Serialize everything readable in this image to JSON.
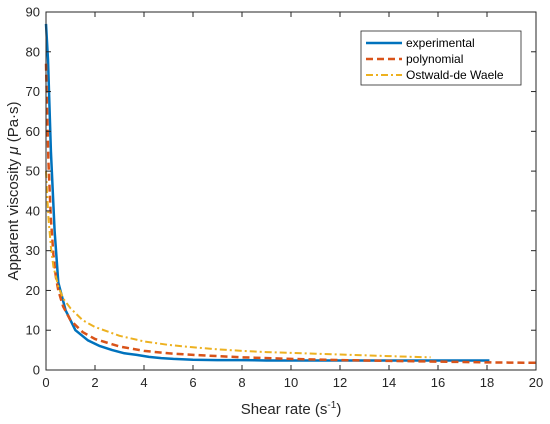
{
  "chart_data": {
    "type": "line",
    "title": "",
    "xlabel": {
      "prefix": "Shear rate (s",
      "sup": "-1",
      "suffix": ")"
    },
    "ylabel": {
      "prefix": "Apparent viscosity ",
      "symbol": "μ",
      "suffix": " (Pa·s)"
    },
    "xlim": [
      0,
      20
    ],
    "ylim": [
      0,
      90
    ],
    "xticks": [
      "0",
      "2",
      "4",
      "6",
      "8",
      "10",
      "12",
      "14",
      "16",
      "18",
      "20"
    ],
    "yticks": [
      "0",
      "10",
      "20",
      "30",
      "40",
      "50",
      "60",
      "70",
      "80",
      "90"
    ],
    "grid": false,
    "legend_position": "top-right",
    "series": [
      {
        "name": "experimental",
        "color": "#0072BD",
        "dash": "solid",
        "x": [
          0.0,
          0.08,
          0.2,
          0.35,
          0.5,
          0.8,
          1.2,
          1.7,
          2.2,
          2.7,
          3.2,
          3.7,
          4.2,
          4.7,
          5.2,
          6.0,
          7.0,
          8.0,
          9.0,
          10.0,
          11.0,
          12.0,
          13.0,
          14.0,
          15.0,
          16.0,
          17.0,
          18.1
        ],
        "y": [
          87.0,
          78.0,
          55.0,
          35.0,
          22.0,
          15.0,
          10.0,
          7.5,
          6.0,
          5.0,
          4.2,
          3.8,
          3.3,
          3.0,
          2.8,
          2.6,
          2.5,
          2.5,
          2.4,
          2.4,
          2.4,
          2.4,
          2.4,
          2.4,
          2.4,
          2.4,
          2.4,
          2.4
        ]
      },
      {
        "name": "polynomial",
        "color": "#D95319",
        "dash": "dashed",
        "x": [
          0.0,
          0.05,
          0.1,
          0.2,
          0.3,
          0.4,
          0.5,
          0.7,
          1.0,
          1.5,
          2.0,
          3.0,
          4.0,
          5.0,
          6.0,
          7.0,
          8.0,
          10.0,
          12.0,
          14.0,
          16.0,
          18.0,
          20.0
        ],
        "y": [
          77.0,
          64.0,
          52.0,
          38.0,
          29.0,
          23.5,
          20.0,
          16.0,
          12.5,
          9.5,
          7.8,
          5.9,
          4.8,
          4.2,
          3.8,
          3.5,
          3.2,
          2.8,
          2.5,
          2.3,
          2.1,
          1.9,
          1.8
        ]
      },
      {
        "name": "Ostwald-de Waele",
        "color": "#EDB120",
        "dash": "dashdot",
        "x": [
          0.0,
          0.05,
          0.1,
          0.2,
          0.3,
          0.5,
          0.7,
          1.0,
          1.5,
          2.0,
          3.0,
          4.0,
          5.0,
          6.0,
          7.0,
          8.0,
          9.0,
          10.0,
          11.0,
          12.0,
          13.0,
          14.0,
          15.0,
          15.7
        ],
        "y": [
          50.0,
          44.0,
          38.0,
          31.0,
          26.0,
          21.0,
          18.0,
          15.5,
          12.5,
          10.8,
          8.6,
          7.2,
          6.3,
          5.7,
          5.2,
          4.8,
          4.5,
          4.3,
          4.1,
          3.9,
          3.7,
          3.5,
          3.3,
          3.2
        ]
      }
    ]
  }
}
